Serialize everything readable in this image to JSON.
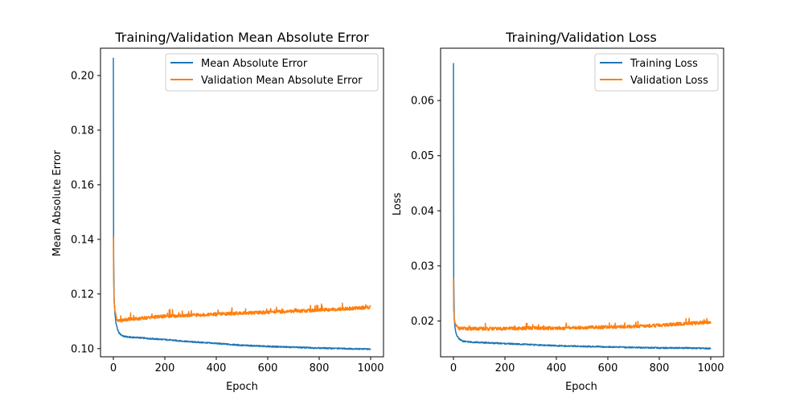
{
  "chart_data": [
    {
      "type": "line",
      "title": "Training/Validation Mean Absolute Error",
      "xlabel": "Epoch",
      "ylabel": "Mean Absolute Error",
      "xlim": [
        -50,
        1050
      ],
      "ylim": [
        0.097,
        0.21
      ],
      "xticks": [
        0,
        200,
        400,
        600,
        800,
        1000
      ],
      "yticks": [
        0.1,
        0.12,
        0.14,
        0.16,
        0.18,
        0.2
      ],
      "ytick_labels": [
        "0.10",
        "0.12",
        "0.14",
        "0.16",
        "0.18",
        "0.20"
      ],
      "xtick_labels": [
        "0",
        "200",
        "400",
        "600",
        "800",
        "1000"
      ],
      "grid": false,
      "legend_position": "top-right",
      "series": [
        {
          "name": "Mean Absolute Error",
          "color": "#1f77b4",
          "x": [
            0,
            1,
            3,
            6,
            10,
            15,
            20,
            30,
            40,
            60,
            100,
            150,
            200,
            300,
            400,
            500,
            600,
            700,
            800,
            900,
            1000
          ],
          "y": [
            0.2065,
            0.135,
            0.118,
            0.113,
            0.1095,
            0.1075,
            0.106,
            0.105,
            0.1045,
            0.1042,
            0.104,
            0.1036,
            0.1033,
            0.1025,
            0.1019,
            0.1012,
            0.1008,
            0.1005,
            0.1002,
            0.1,
            0.0998
          ]
        },
        {
          "name": "Validation Mean Absolute Error",
          "color": "#ff7f0e",
          "x": [
            0,
            1,
            3,
            6,
            10,
            15,
            20,
            30,
            40,
            60,
            100,
            150,
            200,
            300,
            400,
            500,
            600,
            700,
            800,
            900,
            1000
          ],
          "y": [
            0.141,
            0.125,
            0.117,
            0.114,
            0.112,
            0.1105,
            0.11,
            0.1102,
            0.1105,
            0.1108,
            0.111,
            0.1115,
            0.1118,
            0.1122,
            0.1126,
            0.113,
            0.1133,
            0.1137,
            0.1141,
            0.1145,
            0.1152
          ]
        }
      ]
    },
    {
      "type": "line",
      "title": "Training/Validation Loss",
      "xlabel": "Epoch",
      "ylabel": "Loss",
      "xlim": [
        -50,
        1050
      ],
      "ylim": [
        0.0135,
        0.0695
      ],
      "xticks": [
        0,
        200,
        400,
        600,
        800,
        1000
      ],
      "yticks": [
        0.02,
        0.03,
        0.04,
        0.05,
        0.06
      ],
      "ytick_labels": [
        "0.02",
        "0.03",
        "0.04",
        "0.05",
        "0.06"
      ],
      "xtick_labels": [
        "0",
        "200",
        "400",
        "600",
        "800",
        "1000"
      ],
      "grid": false,
      "legend_position": "top-right",
      "series": [
        {
          "name": "Training Loss",
          "color": "#1f77b4",
          "x": [
            0,
            1,
            3,
            6,
            10,
            15,
            20,
            30,
            40,
            60,
            100,
            150,
            200,
            300,
            400,
            500,
            600,
            700,
            800,
            900,
            1000
          ],
          "y": [
            0.0668,
            0.028,
            0.0205,
            0.0188,
            0.0178,
            0.0172,
            0.0168,
            0.0165,
            0.0163,
            0.0162,
            0.0161,
            0.016,
            0.0159,
            0.0157,
            0.0155,
            0.0154,
            0.0153,
            0.0152,
            0.0151,
            0.0151,
            0.015
          ]
        },
        {
          "name": "Validation Loss",
          "color": "#ff7f0e",
          "x": [
            0,
            1,
            3,
            6,
            10,
            15,
            20,
            30,
            40,
            60,
            100,
            150,
            200,
            300,
            400,
            500,
            600,
            700,
            800,
            900,
            1000
          ],
          "y": [
            0.0278,
            0.022,
            0.0205,
            0.0197,
            0.0192,
            0.0189,
            0.0187,
            0.0186,
            0.0186,
            0.0186,
            0.0186,
            0.0186,
            0.0186,
            0.0187,
            0.0187,
            0.0188,
            0.0189,
            0.019,
            0.0192,
            0.0195,
            0.0198
          ]
        }
      ]
    }
  ]
}
